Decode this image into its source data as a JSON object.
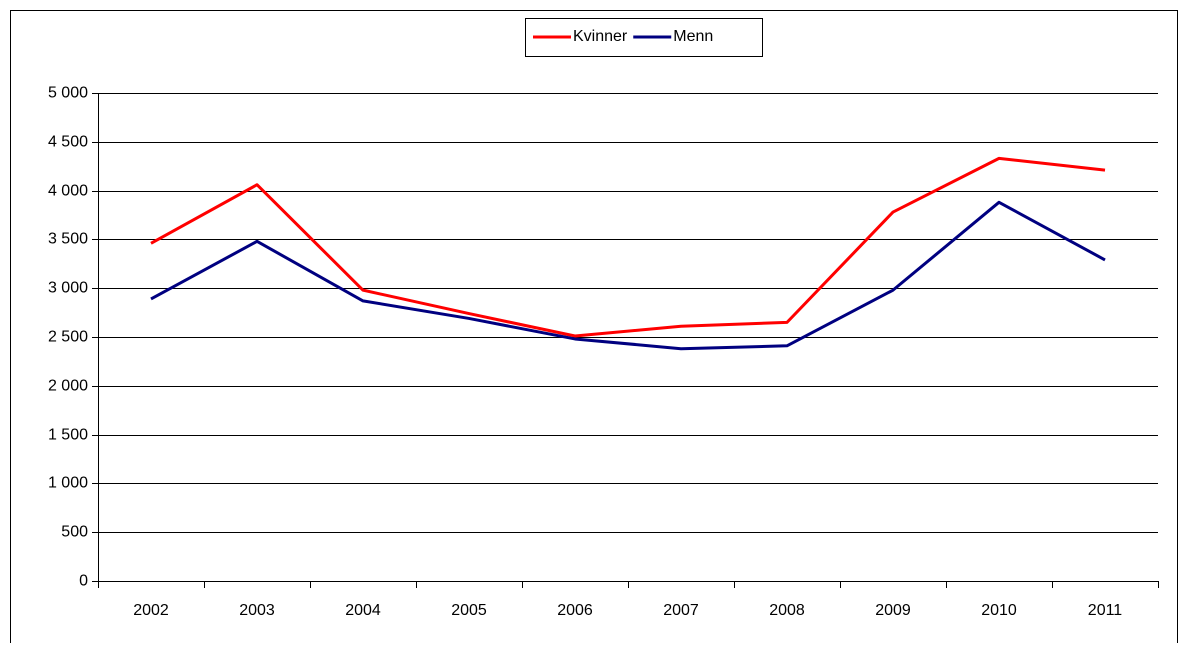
{
  "chart_data": {
    "type": "line",
    "categories": [
      "2002",
      "2003",
      "2004",
      "2005",
      "2006",
      "2007",
      "2008",
      "2009",
      "2010",
      "2011"
    ],
    "series": [
      {
        "name": "Kvinner",
        "color": "#ff0000",
        "values": [
          3460,
          4060,
          2980,
          2740,
          2510,
          2610,
          2650,
          3780,
          4330,
          4210
        ]
      },
      {
        "name": "Menn",
        "color": "#000080",
        "values": [
          2890,
          3480,
          2870,
          2690,
          2480,
          2380,
          2410,
          2980,
          3880,
          3290
        ]
      }
    ],
    "ylim": [
      0,
      5000
    ],
    "yticks": [
      0,
      500,
      {
        "value": 1000,
        "label": "1 000"
      },
      {
        "value": 1500,
        "label": "1 500"
      },
      {
        "value": 2000,
        "label": "2 000"
      },
      {
        "value": 2500,
        "label": "2 500"
      },
      {
        "value": 3000,
        "label": "3 000"
      },
      {
        "value": 3500,
        "label": "3 500"
      },
      {
        "value": 4000,
        "label": "4 000"
      },
      {
        "value": 4500,
        "label": "4 500"
      },
      {
        "value": 5000,
        "label": "5 000"
      }
    ],
    "grid": true,
    "legend": "top"
  }
}
